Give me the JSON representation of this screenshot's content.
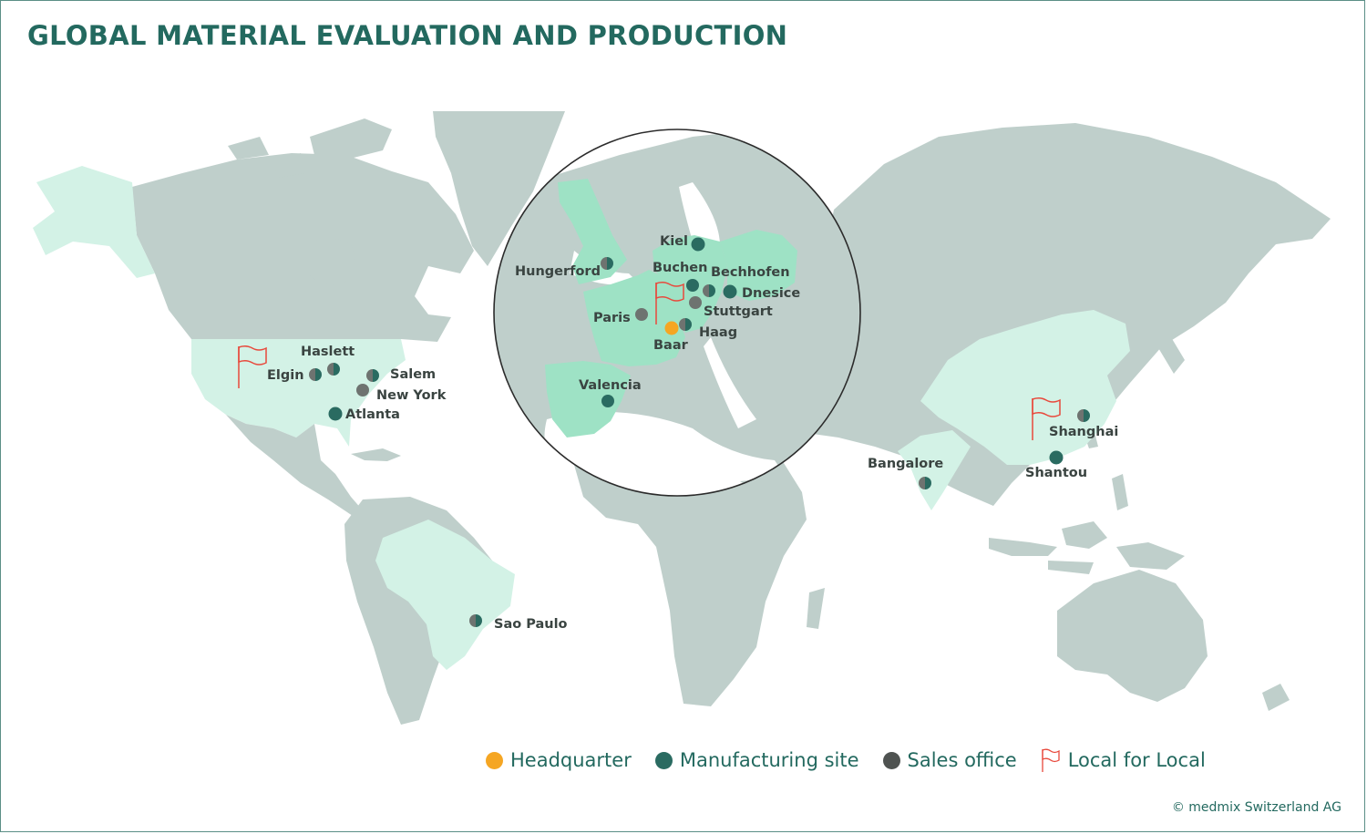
{
  "title": "GLOBAL MATERIAL EVALUATION AND PRODUCTION",
  "colors": {
    "headquarter": "#f5a623",
    "manufacturing": "#2a6b61",
    "sales": "#5f6361",
    "local_flag": "#e8493c",
    "land": "#bfcfcb",
    "highlight_light": "#d3f2e6",
    "highlight_mid": "#9ee2c5"
  },
  "legend": {
    "headquarter": "Headquarter",
    "manufacturing": "Manufacturing site",
    "sales": "Sales office",
    "local": "Local for Local"
  },
  "sites": {
    "kiel": "Kiel",
    "hungerford": "Hungerford",
    "buchen": "Buchen",
    "bechhofen": "Bechhofen",
    "dnesice": "Dnesice",
    "stuttgart": "Stuttgart",
    "paris": "Paris",
    "haag": "Haag",
    "baar": "Baar",
    "valencia": "Valencia",
    "haslett": "Haslett",
    "elgin": "Elgin",
    "salem": "Salem",
    "new_york": "New York",
    "atlanta": "Atlanta",
    "sao_paulo": "Sao Paulo",
    "bangalore": "Bangalore",
    "shanghai": "Shanghai",
    "shantou": "Shantou"
  },
  "copyright": "© medmix Switzerland AG"
}
